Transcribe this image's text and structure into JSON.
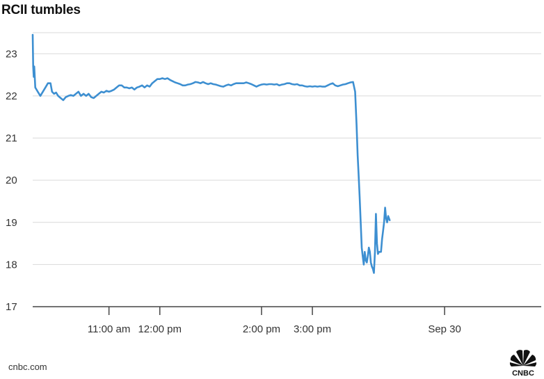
{
  "header": {
    "title": "RCII tumbles"
  },
  "footer": {
    "source": "cnbc.com",
    "logo_text": "CNBC"
  },
  "colors": {
    "line": "#3d8fd1",
    "grid": "#d9d9d9",
    "axis": "#444444"
  },
  "chart_data": {
    "type": "line",
    "title": "RCII tumbles",
    "xlabel": "",
    "ylabel": "",
    "ylim": [
      17,
      23.5
    ],
    "y_ticks": [
      17,
      18,
      19,
      20,
      21,
      22,
      23
    ],
    "x_range": [
      9.5,
      19.5
    ],
    "x_ticks": [
      {
        "x": 11.0,
        "label": "11:00 am"
      },
      {
        "x": 12.0,
        "label": "12:00 pm"
      },
      {
        "x": 14.0,
        "label": "2:00 pm"
      },
      {
        "x": 15.0,
        "label": "3:00 pm"
      },
      {
        "x": 17.6,
        "label": "Sep 30"
      }
    ],
    "grid": true,
    "series": [
      {
        "points": [
          [
            9.5,
            23.45
          ],
          [
            9.51,
            22.7
          ],
          [
            9.52,
            22.45
          ],
          [
            9.53,
            22.7
          ],
          [
            9.55,
            22.2
          ],
          [
            9.6,
            22.1
          ],
          [
            9.65,
            22.0
          ],
          [
            9.7,
            22.1
          ],
          [
            9.75,
            22.2
          ],
          [
            9.8,
            22.3
          ],
          [
            9.85,
            22.3
          ],
          [
            9.88,
            22.1
          ],
          [
            9.92,
            22.05
          ],
          [
            9.96,
            22.08
          ],
          [
            10.0,
            22.0
          ],
          [
            10.05,
            21.95
          ],
          [
            10.1,
            21.9
          ],
          [
            10.15,
            21.97
          ],
          [
            10.2,
            22.0
          ],
          [
            10.25,
            22.02
          ],
          [
            10.3,
            22.0
          ],
          [
            10.35,
            22.05
          ],
          [
            10.4,
            22.1
          ],
          [
            10.45,
            22.0
          ],
          [
            10.5,
            22.05
          ],
          [
            10.55,
            22.0
          ],
          [
            10.6,
            22.05
          ],
          [
            10.65,
            21.97
          ],
          [
            10.7,
            21.95
          ],
          [
            10.75,
            22.0
          ],
          [
            10.8,
            22.05
          ],
          [
            10.85,
            22.1
          ],
          [
            10.9,
            22.08
          ],
          [
            10.95,
            22.12
          ],
          [
            11.0,
            22.1
          ],
          [
            11.05,
            22.12
          ],
          [
            11.1,
            22.15
          ],
          [
            11.15,
            22.2
          ],
          [
            11.2,
            22.25
          ],
          [
            11.25,
            22.25
          ],
          [
            11.3,
            22.2
          ],
          [
            11.35,
            22.2
          ],
          [
            11.4,
            22.18
          ],
          [
            11.45,
            22.2
          ],
          [
            11.5,
            22.15
          ],
          [
            11.55,
            22.2
          ],
          [
            11.6,
            22.22
          ],
          [
            11.65,
            22.25
          ],
          [
            11.7,
            22.2
          ],
          [
            11.75,
            22.25
          ],
          [
            11.8,
            22.22
          ],
          [
            11.85,
            22.3
          ],
          [
            11.9,
            22.35
          ],
          [
            11.95,
            22.4
          ],
          [
            12.0,
            22.4
          ],
          [
            12.05,
            22.42
          ],
          [
            12.1,
            22.4
          ],
          [
            12.15,
            22.42
          ],
          [
            12.2,
            22.38
          ],
          [
            12.25,
            22.35
          ],
          [
            12.3,
            22.32
          ],
          [
            12.35,
            22.3
          ],
          [
            12.4,
            22.28
          ],
          [
            12.45,
            22.25
          ],
          [
            12.5,
            22.25
          ],
          [
            12.55,
            22.27
          ],
          [
            12.6,
            22.28
          ],
          [
            12.65,
            22.3
          ],
          [
            12.7,
            22.33
          ],
          [
            12.75,
            22.32
          ],
          [
            12.8,
            22.3
          ],
          [
            12.85,
            22.33
          ],
          [
            12.9,
            22.3
          ],
          [
            12.95,
            22.28
          ],
          [
            13.0,
            22.3
          ],
          [
            13.05,
            22.28
          ],
          [
            13.1,
            22.27
          ],
          [
            13.15,
            22.25
          ],
          [
            13.2,
            22.23
          ],
          [
            13.25,
            22.22
          ],
          [
            13.3,
            22.25
          ],
          [
            13.35,
            22.27
          ],
          [
            13.4,
            22.25
          ],
          [
            13.45,
            22.28
          ],
          [
            13.5,
            22.3
          ],
          [
            13.55,
            22.3
          ],
          [
            13.6,
            22.3
          ],
          [
            13.65,
            22.3
          ],
          [
            13.7,
            22.32
          ],
          [
            13.75,
            22.3
          ],
          [
            13.8,
            22.28
          ],
          [
            13.85,
            22.25
          ],
          [
            13.9,
            22.22
          ],
          [
            13.95,
            22.25
          ],
          [
            14.0,
            22.27
          ],
          [
            14.05,
            22.28
          ],
          [
            14.1,
            22.27
          ],
          [
            14.15,
            22.28
          ],
          [
            14.2,
            22.28
          ],
          [
            14.25,
            22.27
          ],
          [
            14.3,
            22.28
          ],
          [
            14.35,
            22.25
          ],
          [
            14.4,
            22.27
          ],
          [
            14.45,
            22.28
          ],
          [
            14.5,
            22.3
          ],
          [
            14.55,
            22.3
          ],
          [
            14.6,
            22.28
          ],
          [
            14.65,
            22.27
          ],
          [
            14.7,
            22.28
          ],
          [
            14.75,
            22.25
          ],
          [
            14.8,
            22.25
          ],
          [
            14.85,
            22.23
          ],
          [
            14.9,
            22.22
          ],
          [
            14.95,
            22.23
          ],
          [
            15.0,
            22.22
          ],
          [
            15.05,
            22.23
          ],
          [
            15.1,
            22.22
          ],
          [
            15.15,
            22.23
          ],
          [
            15.2,
            22.22
          ],
          [
            15.25,
            22.22
          ],
          [
            15.3,
            22.25
          ],
          [
            15.35,
            22.28
          ],
          [
            15.4,
            22.3
          ],
          [
            15.45,
            22.25
          ],
          [
            15.5,
            22.23
          ],
          [
            15.55,
            22.25
          ],
          [
            15.6,
            22.27
          ],
          [
            15.65,
            22.28
          ],
          [
            15.7,
            22.3
          ],
          [
            15.75,
            22.32
          ],
          [
            15.8,
            22.33
          ],
          [
            15.84,
            22.1
          ],
          [
            15.87,
            21.3
          ],
          [
            15.89,
            20.6
          ],
          [
            15.91,
            20.1
          ],
          [
            15.93,
            19.6
          ],
          [
            15.95,
            19.0
          ],
          [
            15.97,
            18.4
          ],
          [
            15.99,
            18.2
          ],
          [
            16.01,
            18.0
          ],
          [
            16.03,
            18.3
          ],
          [
            16.05,
            18.1
          ],
          [
            16.07,
            18.05
          ],
          [
            16.09,
            18.2
          ],
          [
            16.11,
            18.4
          ],
          [
            16.13,
            18.3
          ],
          [
            16.15,
            18.05
          ],
          [
            16.17,
            17.95
          ],
          [
            16.19,
            17.9
          ],
          [
            16.21,
            17.8
          ],
          [
            16.23,
            18.3
          ],
          [
            16.25,
            19.2
          ],
          [
            16.27,
            18.5
          ],
          [
            16.29,
            18.25
          ],
          [
            16.31,
            18.3
          ],
          [
            16.33,
            18.3
          ],
          [
            16.35,
            18.3
          ],
          [
            16.37,
            18.6
          ],
          [
            16.39,
            18.8
          ],
          [
            16.41,
            19.0
          ],
          [
            16.43,
            19.35
          ],
          [
            16.45,
            19.1
          ],
          [
            16.47,
            19.0
          ],
          [
            16.49,
            19.15
          ],
          [
            16.52,
            19.05
          ]
        ]
      }
    ]
  }
}
